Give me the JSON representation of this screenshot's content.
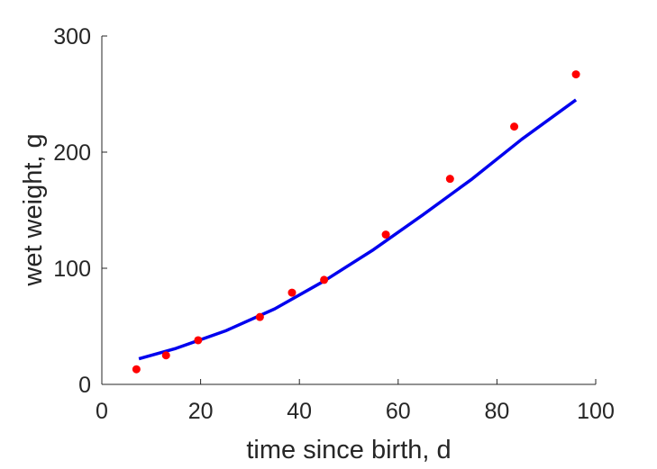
{
  "chart_data": {
    "type": "scatter",
    "xlabel": "time since birth, d",
    "ylabel": "wet weight, g",
    "xlim": [
      0,
      100
    ],
    "ylim": [
      0,
      300
    ],
    "xticks": [
      0,
      20,
      40,
      60,
      80,
      100
    ],
    "yticks": [
      0,
      100,
      200,
      300
    ],
    "grid": false,
    "series": [
      {
        "type": "scatter",
        "color": "#ff0000",
        "x": [
          7,
          13,
          19.5,
          32,
          38.5,
          45,
          57.5,
          70.5,
          83.5,
          96
        ],
        "y": [
          13,
          25,
          38,
          58,
          79,
          90,
          129,
          177,
          222,
          267
        ]
      },
      {
        "type": "line",
        "color": "#0000ee",
        "x": [
          7.5,
          15,
          25,
          35,
          45,
          55,
          65,
          75,
          85,
          96
        ],
        "y": [
          22,
          31,
          46,
          65,
          89,
          116,
          146,
          177,
          211,
          245
        ]
      }
    ]
  }
}
